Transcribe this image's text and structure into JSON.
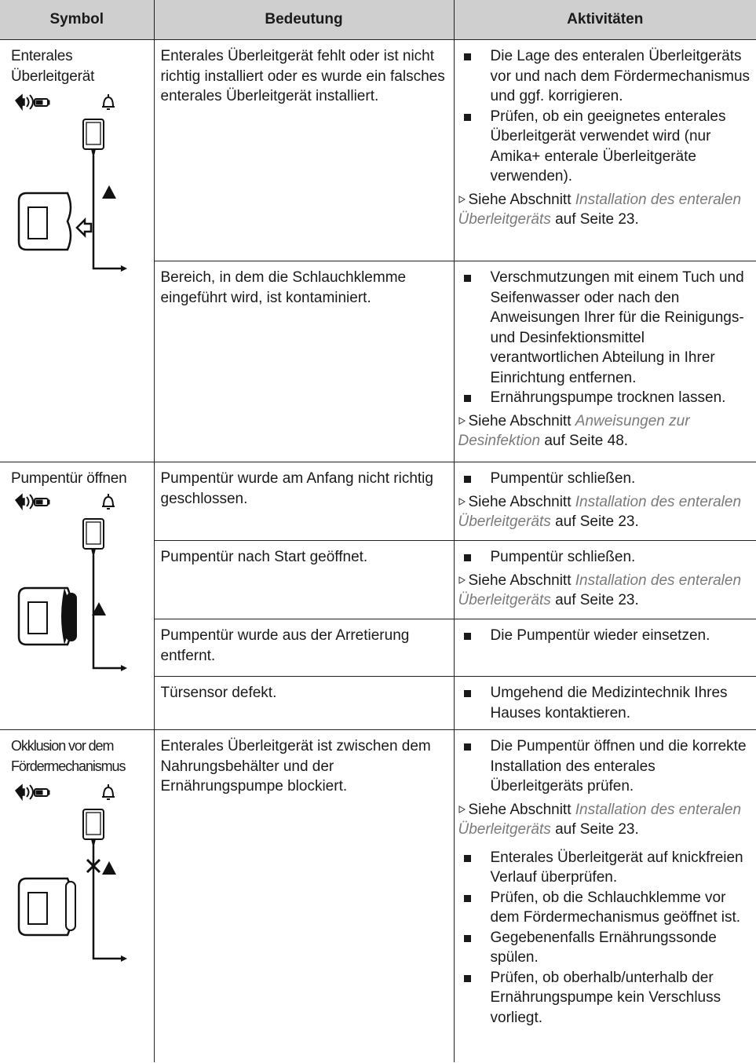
{
  "table": {
    "headers": [
      "Symbol",
      "Bedeutung",
      "Aktivitäten"
    ],
    "groups": [
      {
        "symbol": "Enterales Überleitgerät",
        "rows": [
          {
            "meaning": "Enterales Überleitgerät fehlt oder ist nicht richtig installiert oder es wurde ein falsches enterales Überleitgerät installiert.",
            "activities": [
              "Die Lage des enteralen Überleitgeräts vor und nach dem Fördermechanismus und ggf. korrigieren.",
              "Prüfen, ob ein geeignetes enterales Überleitgerät verwendet wird (nur Amika+ enterale Überleitgeräte verwenden).",
              {
                "prefix": "Siehe Abschnitt",
                "link": "Installation des enteralen Überleitgeräts",
                "suffix": "auf Seite 23."
              }
            ]
          },
          {
            "meaning": "Bereich, in dem die Schlauchklemme eingeführt wird, ist kontaminiert.",
            "activities": [
              "Verschmutzungen mit einem Tuch und Seifenwasser oder nach den Anweisungen Ihrer für die Reinigungs- und Desinfektionsmittel verantwortlichen Abteilung in Ihrer Einrichtung entfernen.",
              "Ernährungspumpe trocknen lassen.",
              {
                "prefix": "Siehe Abschnitt",
                "link": "Anweisungen zur Desinfektion",
                "suffix": "auf Seite 48."
              }
            ]
          }
        ]
      },
      {
        "symbol": "Pumpentür öffnen",
        "rows": [
          {
            "meaning": "Pumpentür wurde am Anfang nicht richtig geschlossen.",
            "activities": [
              "Pumpentür schließen.",
              {
                "prefix": "Siehe Abschnitt",
                "link": "Installation des enteralen Überleitgeräts",
                "suffix": "auf Seite 23."
              }
            ]
          },
          {
            "meaning": "Pumpentür nach Start geöffnet.",
            "activities": [
              "Pumpentür schließen.",
              {
                "prefix": "Siehe Abschnitt",
                "link": "Installation des enteralen Überleitgeräts",
                "suffix": "auf Seite 23."
              }
            ]
          },
          {
            "meaning": "Pumpentür wurde aus der Arretierung entfernt.",
            "activities": [
              "Die Pumpentür wieder einsetzen."
            ]
          },
          {
            "meaning": "Türsensor defekt.",
            "activities": [
              "Umgehend die Medizintechnik Ihres Hauses kontaktieren."
            ]
          }
        ]
      },
      {
        "symbol": "Okklusion vor dem Fördermechanismus",
        "rows": [
          {
            "meaning": "Enterales Überleitgerät ist zwischen dem Nahrungsbehälter und der Ernährungspumpe blockiert.",
            "activities": [
              "Die Pumpentür öffnen und die korrekte Installation des enterales Überleitgeräts prüfen.",
              {
                "prefix": "Siehe Abschnitt",
                "link": "Installation des enteralen Überleitgeräts",
                "suffix": "auf Seite 23."
              },
              "Enterales Überleitgerät auf knickfreien Verlauf überprüfen.",
              "Prüfen, ob die Schlauchklemme vor dem Fördermechanismus geöffnet ist.",
              "Gegebenenfalls Ernährungssonde spülen.",
              "Prüfen, ob oberhalb/unterhalb der Ernährungspumpe kein Verschluss vorliegt."
            ]
          }
        ]
      }
    ]
  }
}
